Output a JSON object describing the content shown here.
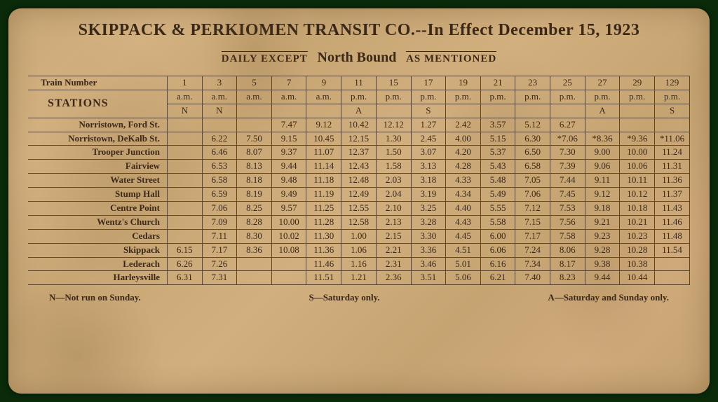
{
  "header": {
    "title": "SKIPPACK & PERKIOMEN TRANSIT CO.--In Effect December 15, 1923",
    "daily_except": "DAILY EXCEPT",
    "direction": "North Bound",
    "as_mentioned": "AS MENTIONED"
  },
  "table": {
    "train_number_label": "Train Number",
    "stations_label": "STATIONS",
    "train_numbers": [
      "1",
      "3",
      "5",
      "7",
      "9",
      "11",
      "15",
      "17",
      "19",
      "21",
      "23",
      "25",
      "27",
      "29",
      "129"
    ],
    "periods": [
      "a.m.",
      "a.m.",
      "a.m.",
      "a.m.",
      "a.m.",
      "p.m.",
      "p.m.",
      "p.m.",
      "p.m.",
      "p.m.",
      "p.m.",
      "p.m.",
      "p.m.",
      "p.m.",
      "p.m."
    ],
    "flags": [
      "N",
      "N",
      "",
      "",
      "",
      "A",
      "",
      "S",
      "",
      "",
      "",
      "",
      "A",
      "",
      "S"
    ],
    "stations": [
      {
        "name": "Norristown, Ford St.",
        "times": [
          "",
          "",
          "",
          "7.47",
          "9.12",
          "10.42",
          "12.12",
          "1.27",
          "2.42",
          "3.57",
          "5.12",
          "6.27",
          "",
          "",
          ""
        ]
      },
      {
        "name": "Norristown, DeKalb St.",
        "times": [
          "",
          "6.22",
          "7.50",
          "9.15",
          "10.45",
          "12.15",
          "1.30",
          "2.45",
          "4.00",
          "5.15",
          "6.30",
          "*7.06",
          "*8.36",
          "*9.36",
          "*11.06"
        ]
      },
      {
        "name": "Trooper Junction",
        "times": [
          "",
          "6.46",
          "8.07",
          "9.37",
          "11.07",
          "12.37",
          "1.50",
          "3.07",
          "4.20",
          "5.37",
          "6.50",
          "7.30",
          "9.00",
          "10.00",
          "11.24"
        ]
      },
      {
        "name": "Fairview",
        "times": [
          "",
          "6.53",
          "8.13",
          "9.44",
          "11.14",
          "12.43",
          "1.58",
          "3.13",
          "4.28",
          "5.43",
          "6.58",
          "7.39",
          "9.06",
          "10.06",
          "11.31"
        ]
      },
      {
        "name": "Water Street",
        "times": [
          "",
          "6.58",
          "8.18",
          "9.48",
          "11.18",
          "12.48",
          "2.03",
          "3.18",
          "4.33",
          "5.48",
          "7.05",
          "7.44",
          "9.11",
          "10.11",
          "11.36"
        ]
      },
      {
        "name": "Stump Hall",
        "times": [
          "",
          "6.59",
          "8.19",
          "9.49",
          "11.19",
          "12.49",
          "2.04",
          "3.19",
          "4.34",
          "5.49",
          "7.06",
          "7.45",
          "9.12",
          "10.12",
          "11.37"
        ]
      },
      {
        "name": "Centre Point",
        "times": [
          "",
          "7.06",
          "8.25",
          "9.57",
          "11.25",
          "12.55",
          "2.10",
          "3.25",
          "4.40",
          "5.55",
          "7.12",
          "7.53",
          "9.18",
          "10.18",
          "11.43"
        ]
      },
      {
        "name": "Wentz's Church",
        "times": [
          "",
          "7.09",
          "8.28",
          "10.00",
          "11.28",
          "12.58",
          "2.13",
          "3.28",
          "4.43",
          "5.58",
          "7.15",
          "7.56",
          "9.21",
          "10.21",
          "11.46"
        ]
      },
      {
        "name": "Cedars",
        "times": [
          "",
          "7.11",
          "8.30",
          "10.02",
          "11.30",
          "1.00",
          "2.15",
          "3.30",
          "4.45",
          "6.00",
          "7.17",
          "7.58",
          "9.23",
          "10.23",
          "11.48"
        ]
      },
      {
        "name": "Skippack",
        "times": [
          "6.15",
          "7.17",
          "8.36",
          "10.08",
          "11.36",
          "1.06",
          "2.21",
          "3.36",
          "4.51",
          "6.06",
          "7.24",
          "8.06",
          "9.28",
          "10.28",
          "11.54"
        ]
      },
      {
        "name": "Lederach",
        "times": [
          "6.26",
          "7.26",
          "",
          "",
          "11.46",
          "1.16",
          "2.31",
          "3.46",
          "5.01",
          "6.16",
          "7.34",
          "8.17",
          "9.38",
          "10.38",
          ""
        ]
      },
      {
        "name": "Harleysville",
        "times": [
          "6.31",
          "7.31",
          "",
          "",
          "11.51",
          "1.21",
          "2.36",
          "3.51",
          "5.06",
          "6.21",
          "7.40",
          "8.23",
          "9.44",
          "10.44",
          ""
        ]
      }
    ]
  },
  "legend": {
    "n": "N—Not run on Sunday.",
    "s": "S—Saturday only.",
    "a": "A—Saturday and Sunday only."
  },
  "style": {
    "text_color": "#3a2818",
    "border_color": "#5a4530",
    "background": "#0a2a0a"
  }
}
